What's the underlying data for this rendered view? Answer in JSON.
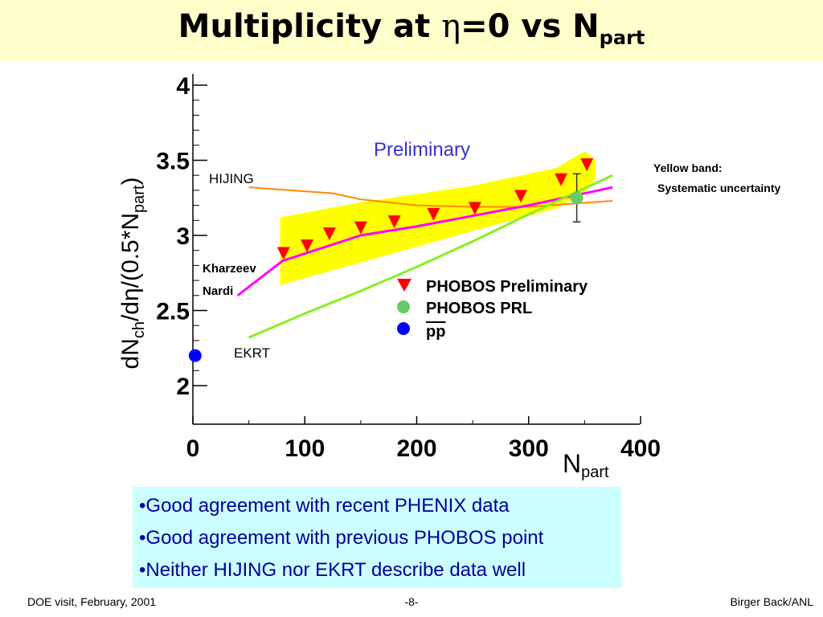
{
  "slide": {
    "title_main": "Multiplicity at ",
    "title_eta": "η",
    "title_rest": "=0 vs N",
    "title_sub": "part",
    "notes": [
      "•Good agreement with recent PHENIX data",
      "•Good agreement with previous PHOBOS point",
      "•Neither HIJING nor EKRT describe data well"
    ],
    "footer_left": "DOE visit, February, 2001",
    "footer_center": "-8-",
    "footer_right": "Birger Back/ANL",
    "yellow_band_title": "Yellow band:",
    "yellow_band_desc": "Systematic uncertainty"
  },
  "chart_data": {
    "type": "scatter",
    "xlabel_main": "N",
    "xlabel_sub": "part",
    "ylabel_main": "dN",
    "ylabel_sub1": "ch",
    "ylabel_mid": "/dη/(0.5*N",
    "ylabel_sub2": "part",
    "ylabel_end": ")",
    "xlim": [
      0,
      400
    ],
    "ylim": [
      1.8,
      4
    ],
    "x_ticks": [
      0,
      100,
      200,
      300,
      400
    ],
    "y_ticks": [
      2,
      2.5,
      3,
      3.5,
      4
    ],
    "annotation": "Preliminary",
    "colors": {
      "band": "#ffff00",
      "phobos": "#ff0000",
      "prl": "#66cc66",
      "pp": "#0000ff",
      "hijing": "#ff8800",
      "kn": "#ff00ff",
      "ekrt": "#88ee22"
    },
    "series": [
      {
        "name": "PHOBOS Preliminary",
        "marker": "triangle-down",
        "x": [
          81,
          102,
          122,
          150,
          180,
          215,
          252,
          293,
          329,
          352
        ],
        "y": [
          2.88,
          2.93,
          3.01,
          3.05,
          3.09,
          3.14,
          3.18,
          3.26,
          3.37,
          3.47
        ]
      },
      {
        "name": "PHOBOS PRL",
        "marker": "circle",
        "x": [
          343
        ],
        "y": [
          3.25
        ],
        "yerr": [
          0.16
        ]
      },
      {
        "name": "pp",
        "marker": "circle",
        "x": [
          2
        ],
        "y": [
          2.2
        ]
      }
    ],
    "curves": [
      {
        "name": "HIJING",
        "x": [
          50,
          125,
          150,
          200,
          250,
          300,
          375
        ],
        "y": [
          3.32,
          3.28,
          3.24,
          3.2,
          3.19,
          3.19,
          3.23
        ]
      },
      {
        "name": "Kharzeev Nardi",
        "x": [
          40,
          80,
          150,
          200,
          250,
          300,
          375
        ],
        "y": [
          2.6,
          2.83,
          3.0,
          3.06,
          3.13,
          3.2,
          3.32
        ]
      },
      {
        "name": "EKRT",
        "x": [
          50,
          100,
          150,
          200,
          250,
          300,
          375
        ],
        "y": [
          2.32,
          2.48,
          2.63,
          2.79,
          2.96,
          3.14,
          3.4
        ]
      }
    ],
    "band": {
      "x": [
        78,
        150,
        250,
        325,
        350,
        360
      ],
      "upper": [
        3.12,
        3.22,
        3.33,
        3.45,
        3.56,
        3.5
      ],
      "lower": [
        2.67,
        2.82,
        3.03,
        3.18,
        3.28,
        3.38
      ]
    },
    "legend": [
      "PHOBOS Preliminary",
      "PHOBOS PRL",
      "pp"
    ]
  }
}
